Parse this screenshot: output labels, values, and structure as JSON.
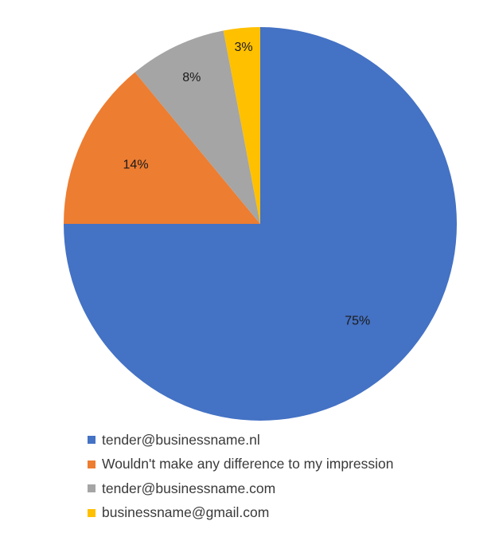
{
  "chart_data": {
    "type": "pie",
    "title": "",
    "start_angle_deg": 0,
    "direction": "clockwise",
    "legend_position": "bottom",
    "slices": [
      {
        "label": "tender@businessname.nl",
        "value": 75,
        "display": "75%",
        "color": "#4472C4"
      },
      {
        "label": "Wouldn't make any difference to my impression",
        "value": 14,
        "display": "14%",
        "color": "#ED7D31"
      },
      {
        "label": "tender@businessname.com",
        "value": 8,
        "display": "8%",
        "color": "#A5A5A5"
      },
      {
        "label": "businessname@gmail.com",
        "value": 3,
        "display": "3%",
        "color": "#FFC000"
      }
    ]
  }
}
